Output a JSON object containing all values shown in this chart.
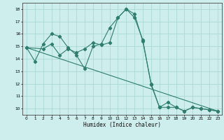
{
  "xlabel": "Humidex (Indice chaleur)",
  "bg_color": "#ceeeed",
  "line_color": "#2e7d6e",
  "grid_color": "#aad8d4",
  "xlim": [
    -0.5,
    23.5
  ],
  "ylim": [
    9.5,
    18.5
  ],
  "yticks": [
    10,
    11,
    12,
    13,
    14,
    15,
    16,
    17,
    18
  ],
  "xticks": [
    0,
    1,
    2,
    3,
    4,
    5,
    6,
    7,
    8,
    9,
    10,
    11,
    12,
    13,
    14,
    15,
    16,
    17,
    18,
    19,
    20,
    21,
    22,
    23
  ],
  "series1_x": [
    0,
    1,
    2,
    3,
    4,
    5,
    6,
    7,
    8,
    9,
    10,
    11,
    12,
    13,
    14,
    15,
    16,
    17,
    18,
    19,
    20,
    21,
    22,
    23
  ],
  "series1_y": [
    14.9,
    13.8,
    15.2,
    16.0,
    15.8,
    14.9,
    14.3,
    13.2,
    15.0,
    15.2,
    16.5,
    17.3,
    18.0,
    17.6,
    15.4,
    12.0,
    10.1,
    10.1,
    10.1,
    9.8,
    10.1,
    10.0,
    9.9,
    9.8
  ],
  "series2_x": [
    0,
    2,
    3,
    4,
    5,
    6,
    7,
    8,
    9,
    10,
    11,
    12,
    13,
    14,
    15,
    16,
    17,
    18,
    19,
    20,
    21,
    22,
    23
  ],
  "series2_y": [
    14.9,
    14.8,
    15.2,
    14.3,
    14.8,
    14.5,
    14.8,
    15.3,
    15.1,
    15.3,
    17.3,
    18.0,
    17.3,
    15.5,
    11.9,
    10.1,
    10.5,
    10.1,
    9.8,
    10.1,
    10.0,
    9.9,
    9.8
  ],
  "series3_x": [
    0,
    23
  ],
  "series3_y": [
    14.9,
    9.8
  ]
}
